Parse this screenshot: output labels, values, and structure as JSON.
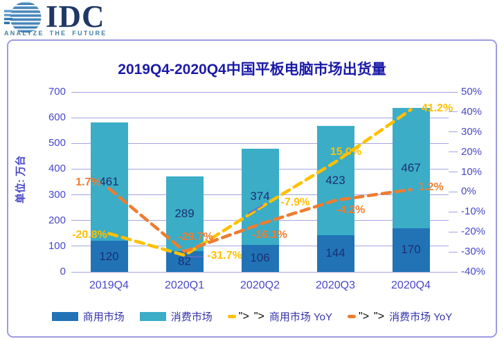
{
  "logo": {
    "brand": "IDC",
    "tagline": "ANALYZE THE FUTURE"
  },
  "title": "2019Q4-2020Q4中国平板电脑市场出货量",
  "chart_data": {
    "type": "bar",
    "subtype": "stacked-bar-with-yoy-lines",
    "title": "2019Q4-2020Q4中国平板电脑市场出货量",
    "categories": [
      "2019Q4",
      "2020Q1",
      "2020Q2",
      "2020Q3",
      "2020Q4"
    ],
    "bar_series": [
      {
        "name": "商用市场",
        "color": "#2173B6",
        "values": [
          120,
          82,
          106,
          144,
          170
        ]
      },
      {
        "name": "消费市场",
        "color": "#3BADC7",
        "values": [
          461,
          289,
          374,
          423,
          467
        ]
      }
    ],
    "line_series": [
      {
        "name": "商用市场 YoY",
        "color": "#FFC000",
        "values_percent": [
          -20.8,
          -31.7,
          -7.9,
          15.0,
          41.2
        ]
      },
      {
        "name": "消费市场 YoY",
        "color": "#ED7D31",
        "values_percent": [
          1.7,
          -29.7,
          -16.1,
          -4.2,
          1.2
        ]
      }
    ],
    "left_axis": {
      "label": "单位: 万台",
      "min": 0,
      "max": 700,
      "ticks": [
        0,
        100,
        200,
        300,
        400,
        500,
        600,
        700
      ]
    },
    "right_axis": {
      "min": -40,
      "max": 50,
      "ticks_percent": [
        -40,
        -30,
        -20,
        -10,
        0,
        10,
        20,
        30,
        40,
        50
      ]
    },
    "grid": true,
    "legend_position": "bottom"
  },
  "colors": {
    "title": "#1A1AA8",
    "axis_text": "#4747C9",
    "bar_value_label": "#1B2F72",
    "gridline": "#A3A3E0",
    "panel_border": "#9B9BE3",
    "commercial_bar": "#2173B6",
    "consumer_bar": "#3BADC7",
    "commercial_yoy_line": "#FFC000",
    "consumer_yoy_line": "#ED7D31",
    "legend_text": "#3232AA",
    "logo_navy": "#1F3864",
    "logo_tagline": "#3F7FA3",
    "leader_line": "#6A6AD0"
  }
}
